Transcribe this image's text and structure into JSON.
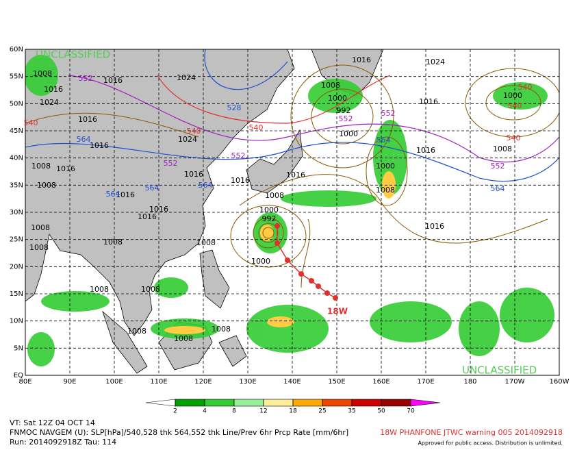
{
  "map": {
    "lat_labels": [
      "60N",
      "55N",
      "50N",
      "45N",
      "40N",
      "35N",
      "30N",
      "25N",
      "20N",
      "15N",
      "10N",
      "5N",
      "EQ"
    ],
    "lon_labels": [
      "80E",
      "90E",
      "100E",
      "110E",
      "120E",
      "130E",
      "140E",
      "150E",
      "160E",
      "170E",
      "180",
      "170W",
      "160W"
    ],
    "watermarks": [
      "UNCLASSIFIED",
      "UNCLASSIFIED"
    ],
    "storm_label": "18W",
    "pressure_labels": [
      1008,
      1016,
      1016,
      1024,
      1024,
      1016,
      1016,
      1024,
      1008,
      1016,
      1008,
      1016,
      1016,
      1016,
      1008,
      1008,
      1008,
      1008,
      1008,
      1008,
      1008,
      1008,
      1008,
      1016,
      1016,
      1016,
      1008,
      1000,
      992,
      1000,
      1016,
      1024,
      1008,
      1000,
      992,
      1000,
      1000,
      1008,
      1016,
      1016,
      1000,
      1008,
      1016
    ],
    "thickness_labels": [
      {
        "text": 552,
        "color": "#a020c0"
      },
      {
        "text": 528,
        "color": "#2050d0"
      },
      {
        "text": 540,
        "color": "#e03030"
      },
      {
        "text": 540,
        "color": "#e03030"
      },
      {
        "text": 540,
        "color": "#e03030"
      },
      {
        "text": 564,
        "color": "#2050d0"
      },
      {
        "text": 552,
        "color": "#a020c0"
      },
      {
        "text": 552,
        "color": "#a020c0"
      },
      {
        "text": 564,
        "color": "#2050d0"
      },
      {
        "text": 564,
        "color": "#2050d0"
      },
      {
        "text": 564,
        "color": "#2050d0"
      },
      {
        "text": 552,
        "color": "#a020c0"
      },
      {
        "text": 552,
        "color": "#a020c0"
      },
      {
        "text": 564,
        "color": "#2050d0"
      },
      {
        "text": 552,
        "color": "#a020c0"
      },
      {
        "text": 564,
        "color": "#2050d0"
      },
      {
        "text": 540,
        "color": "#e03030"
      },
      {
        "text": 540,
        "color": "#e03030"
      },
      {
        "text": 540,
        "color": "#e03030"
      }
    ]
  },
  "colorbar": {
    "ticks": [
      2,
      4,
      8,
      12,
      18,
      25,
      35,
      50,
      70
    ],
    "colors": [
      "#ffffff",
      "#00a000",
      "#33cc33",
      "#99ee99",
      "#ffee99",
      "#ffaa00",
      "#ee4400",
      "#cc0000",
      "#990000",
      "#ff00ff"
    ]
  },
  "footer": {
    "valid": "VT: Sat 12Z 04 OCT 14",
    "model": "FNMOC NAVGEM (U): SLP[hPa]/540,528 thk 564,552 thk Line/Prev 6hr Prcp Rate [mm/6hr]",
    "run": "Run: 2014092918Z Tau: 114",
    "warning": "18W PHANFONE JTWC warning 005 2014092918",
    "approval": "Approved for public access. Distribution is unlimited."
  }
}
